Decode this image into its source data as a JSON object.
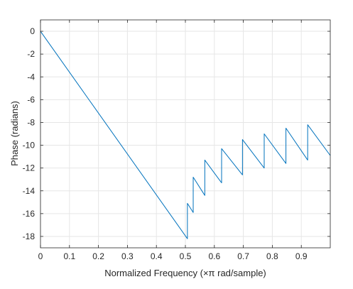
{
  "chart_data": {
    "type": "line",
    "title": "",
    "xlabel": "Normalized Frequency (×π rad/sample)",
    "ylabel": "Phase (radians)",
    "xlim": [
      0,
      1
    ],
    "ylim": [
      -19,
      1
    ],
    "grid": true,
    "legend": "none",
    "xticks": [
      0,
      0.1,
      0.2,
      0.3,
      0.4,
      0.5,
      0.6,
      0.7,
      0.8,
      0.9
    ],
    "xtick_labels": [
      "0",
      "0.1",
      "0.2",
      "0.3",
      "0.4",
      "0.5",
      "0.6",
      "0.7",
      "0.8",
      "0.9"
    ],
    "yticks": [
      0,
      -2,
      -4,
      -6,
      -8,
      -10,
      -12,
      -14,
      -16,
      -18
    ],
    "ytick_labels": [
      "0",
      "-2",
      "-4",
      "-6",
      "-8",
      "-10",
      "-12",
      "-14",
      "-16",
      "-18"
    ],
    "series": [
      {
        "color": "#0072BD",
        "x": [
          0,
          0.507,
          0.507,
          0.527,
          0.527,
          0.567,
          0.567,
          0.625,
          0.625,
          0.697,
          0.697,
          0.772,
          0.772,
          0.847,
          0.847,
          0.922,
          0.922,
          1.0
        ],
        "y": [
          0,
          -18.2,
          -15.1,
          -15.9,
          -12.8,
          -14.4,
          -11.3,
          -13.3,
          -10.3,
          -12.6,
          -9.5,
          -12.0,
          -9.0,
          -11.6,
          -8.5,
          -11.3,
          -8.2,
          -10.9
        ]
      }
    ]
  }
}
